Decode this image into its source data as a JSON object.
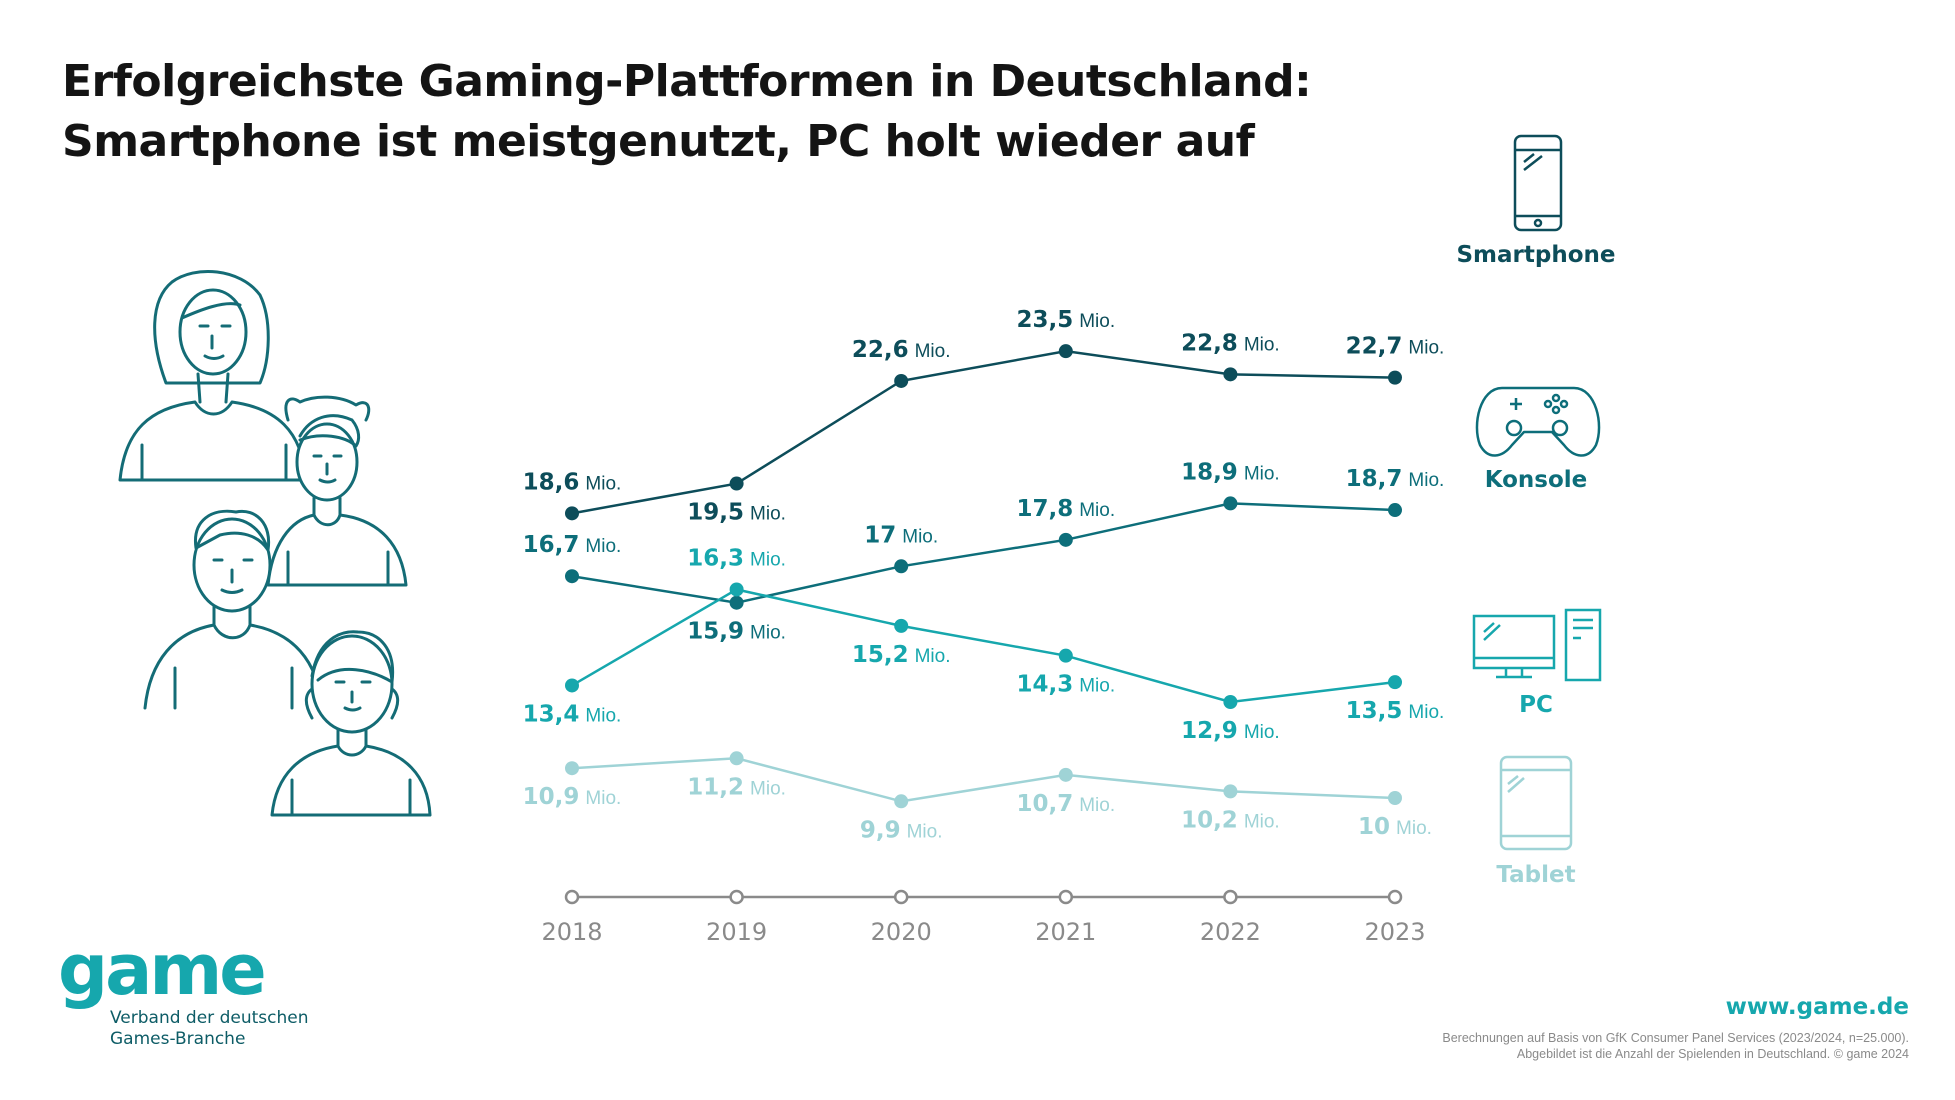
{
  "title_lines": [
    "Erfolgreichste Gaming-Plattformen in Deutschland:",
    "Smartphone ist meistgenutzt, PC holt wieder auf"
  ],
  "chart_data": {
    "type": "line",
    "x": [
      "2018",
      "2019",
      "2020",
      "2021",
      "2022",
      "2023"
    ],
    "unit": "Mio.",
    "series": [
      {
        "name": "Smartphone",
        "color": "#0d4d5a",
        "icon": "smartphone-icon",
        "values": [
          18.6,
          19.5,
          22.6,
          23.5,
          22.8,
          22.7
        ],
        "labels": [
          "18,6",
          "19,5",
          "22,6",
          "23,5",
          "22,8",
          "22,7"
        ]
      },
      {
        "name": "Konsole",
        "color": "#0d6e7a",
        "icon": "gamepad-icon",
        "values": [
          16.7,
          15.9,
          17,
          17.8,
          18.9,
          18.7
        ],
        "labels": [
          "16,7",
          "15,9",
          "17",
          "17,8",
          "18,9",
          "18,7"
        ]
      },
      {
        "name": "PC",
        "color": "#16a7ad",
        "icon": "desktop-computer-icon",
        "values": [
          13.4,
          16.3,
          15.2,
          14.3,
          12.9,
          13.5
        ],
        "labels": [
          "13,4",
          "16,3",
          "15,2",
          "14,3",
          "12,9",
          "13,5"
        ]
      },
      {
        "name": "Tablet",
        "color": "#9fd3d6",
        "icon": "tablet-icon",
        "values": [
          10.9,
          11.2,
          9.9,
          10.7,
          10.2,
          10
        ],
        "labels": [
          "10,9",
          "11,2",
          "9,9",
          "10,7",
          "10,2",
          "10"
        ]
      }
    ],
    "grid": false,
    "legend": "right"
  },
  "illustration": {
    "icon": "people-group-icon",
    "color": "#146c76"
  },
  "footer": {
    "logo": "game",
    "logo_sub_lines": [
      "Verband der deutschen",
      "Games-Branche"
    ],
    "website": "www.game.de",
    "source_lines": [
      "Berechnungen auf Basis von GfK Consumer Panel Services (2023/2024, n=25.000).",
      "Abgebildet ist die Anzahl der Spielenden in Deutschland. © game 2024"
    ],
    "logo_color": "#16a7ad",
    "text_color": "#0d5c66"
  }
}
